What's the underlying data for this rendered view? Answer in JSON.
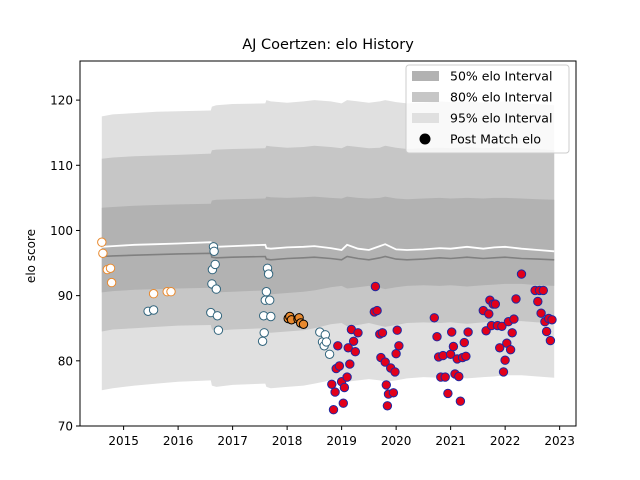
{
  "chart_data": {
    "type": "scatter",
    "title": "AJ Coertzen: elo History",
    "xlabel": "",
    "ylabel": "elo score",
    "xlim": [
      2014.2,
      2023.3
    ],
    "ylim": [
      70,
      126
    ],
    "xticks": [
      2015,
      2016,
      2017,
      2018,
      2019,
      2020,
      2021,
      2022,
      2023
    ],
    "yticks": [
      70,
      80,
      90,
      100,
      110,
      120
    ],
    "legend_position": "top-right",
    "legend": [
      {
        "label": "50% elo Interval",
        "kind": "band",
        "color": "#b2b2b2"
      },
      {
        "label": "80% elo Interval",
        "kind": "band",
        "color": "#c6c6c6"
      },
      {
        "label": "95% elo Interval",
        "kind": "band",
        "color": "#e0e0e0"
      },
      {
        "label": "Post Match elo",
        "kind": "marker",
        "color": "#000000"
      }
    ],
    "bands": {
      "x": [
        2014.6,
        2014.8,
        2015.2,
        2015.6,
        2016.0,
        2016.6,
        2016.62,
        2016.7,
        2017.0,
        2017.6,
        2017.62,
        2017.7,
        2018.0,
        2018.3,
        2018.5,
        2018.8,
        2019.0,
        2019.1,
        2019.3,
        2019.5,
        2019.7,
        2019.8,
        2020.0,
        2020.2,
        2020.5,
        2020.8,
        2021.0,
        2021.3,
        2021.6,
        2021.8,
        2022.0,
        2022.3,
        2022.6,
        2022.9
      ],
      "p95_low": [
        75.5,
        75.8,
        76.2,
        76.5,
        76.8,
        77.0,
        76.2,
        76.0,
        76.3,
        76.5,
        76.0,
        75.8,
        76.0,
        76.2,
        76.5,
        77.0,
        77.2,
        76.8,
        77.0,
        77.2,
        77.0,
        76.8,
        77.0,
        77.3,
        77.5,
        77.4,
        77.5,
        77.3,
        77.5,
        77.6,
        77.8,
        77.8,
        77.6,
        77.4
      ],
      "p95_high": [
        117.5,
        117.8,
        118.0,
        118.2,
        118.3,
        118.4,
        119.0,
        119.2,
        119.4,
        119.5,
        120.0,
        119.8,
        119.6,
        119.8,
        120.0,
        119.8,
        119.5,
        120.0,
        119.8,
        119.6,
        119.8,
        120.0,
        119.7,
        119.5,
        119.6,
        119.8,
        119.7,
        119.8,
        119.6,
        119.7,
        119.8,
        119.5,
        119.4,
        119.2
      ],
      "p80_low": [
        84.5,
        84.8,
        85.0,
        85.2,
        85.4,
        85.5,
        84.8,
        84.6,
        84.8,
        85.0,
        84.4,
        84.3,
        84.5,
        84.7,
        85.0,
        85.6,
        85.8,
        85.3,
        85.5,
        85.8,
        85.4,
        85.2,
        85.5,
        85.8,
        85.9,
        85.8,
        85.9,
        85.7,
        85.9,
        86.0,
        86.1,
        86.1,
        85.9,
        85.8
      ],
      "p80_high": [
        111.0,
        111.2,
        111.4,
        111.5,
        111.6,
        111.8,
        112.3,
        112.4,
        112.5,
        112.6,
        113.0,
        112.9,
        112.7,
        112.8,
        113.0,
        112.8,
        112.6,
        113.0,
        112.8,
        112.6,
        112.7,
        113.0,
        112.7,
        112.5,
        112.6,
        112.7,
        112.6,
        112.8,
        112.6,
        112.7,
        112.8,
        112.6,
        112.5,
        112.3
      ],
      "p50_low": [
        90.5,
        90.7,
        90.9,
        91.0,
        91.1,
        91.2,
        90.6,
        90.5,
        90.6,
        90.8,
        90.3,
        90.2,
        90.4,
        90.6,
        90.8,
        91.3,
        91.5,
        91.1,
        91.3,
        91.5,
        91.2,
        91.0,
        91.3,
        91.5,
        91.6,
        91.5,
        91.6,
        91.4,
        91.6,
        91.7,
        91.8,
        91.8,
        91.6,
        91.5
      ],
      "p50_high": [
        103.5,
        103.6,
        103.8,
        103.9,
        104.0,
        104.1,
        104.6,
        104.7,
        104.8,
        104.9,
        105.2,
        105.1,
        105.0,
        105.1,
        105.2,
        105.0,
        104.9,
        105.2,
        105.0,
        104.9,
        105.0,
        105.2,
        104.9,
        104.8,
        104.9,
        105.0,
        104.9,
        105.0,
        104.9,
        105.0,
        105.0,
        104.9,
        104.8,
        104.7
      ],
      "median": [
        96.0,
        96.1,
        96.2,
        96.3,
        96.4,
        96.5,
        95.9,
        95.8,
        95.9,
        96.0,
        95.6,
        95.5,
        95.7,
        95.8,
        95.9,
        95.7,
        95.5,
        96.0,
        95.7,
        95.5,
        95.8,
        96.0,
        95.6,
        95.5,
        95.6,
        95.8,
        95.7,
        95.9,
        95.7,
        95.8,
        95.9,
        95.7,
        95.6,
        95.5
      ],
      "mean": [
        97.5,
        97.6,
        97.8,
        97.9,
        98.0,
        98.2,
        97.6,
        97.5,
        97.6,
        97.8,
        97.3,
        97.2,
        97.4,
        97.5,
        97.6,
        97.3,
        97.0,
        97.8,
        97.2,
        97.0,
        97.6,
        97.9,
        97.1,
        97.0,
        97.1,
        97.3,
        97.2,
        97.5,
        97.2,
        97.4,
        97.5,
        97.2,
        97.0,
        96.8
      ]
    },
    "series": [
      {
        "marker": "open-circle",
        "color": "#e8892e",
        "fill": "#ffffff",
        "points": [
          [
            2014.6,
            98.2
          ],
          [
            2014.62,
            96.5
          ],
          [
            2014.7,
            94.0
          ],
          [
            2014.76,
            94.2
          ],
          [
            2014.78,
            92.0
          ],
          [
            2015.55,
            90.3
          ],
          [
            2015.8,
            90.6
          ],
          [
            2015.87,
            90.6
          ]
        ]
      },
      {
        "marker": "open-circle",
        "color": "#31647c",
        "fill": "#ffffff",
        "points": [
          [
            2015.45,
            87.6
          ],
          [
            2015.55,
            87.8
          ],
          [
            2016.6,
            87.4
          ],
          [
            2016.62,
            91.8
          ],
          [
            2016.63,
            94.0
          ],
          [
            2016.65,
            97.5
          ],
          [
            2016.66,
            96.8
          ],
          [
            2016.68,
            94.8
          ],
          [
            2016.7,
            91.0
          ],
          [
            2016.72,
            86.9
          ],
          [
            2016.74,
            84.7
          ],
          [
            2017.55,
            83.0
          ],
          [
            2017.57,
            86.9
          ],
          [
            2017.58,
            84.3
          ],
          [
            2017.6,
            89.3
          ],
          [
            2017.62,
            90.6
          ],
          [
            2017.64,
            94.2
          ],
          [
            2017.66,
            93.3
          ],
          [
            2017.68,
            89.3
          ],
          [
            2017.7,
            86.8
          ],
          [
            2018.6,
            84.4
          ],
          [
            2018.65,
            82.9
          ],
          [
            2018.68,
            82.3
          ],
          [
            2018.7,
            84.0
          ],
          [
            2018.72,
            82.9
          ],
          [
            2018.78,
            81.0
          ]
        ]
      },
      {
        "marker": "filled-circle",
        "color": "#000000",
        "fill": "#e8892e",
        "points": [
          [
            2018.02,
            86.5
          ],
          [
            2018.05,
            86.8
          ],
          [
            2018.08,
            86.3
          ],
          [
            2018.2,
            86.4
          ],
          [
            2018.22,
            86.6
          ],
          [
            2018.25,
            85.8
          ],
          [
            2018.3,
            85.6
          ]
        ]
      },
      {
        "marker": "filled-circle",
        "color": "#1c29a4",
        "fill": "#e2001a",
        "points": [
          [
            2018.82,
            76.4
          ],
          [
            2018.85,
            72.5
          ],
          [
            2018.88,
            75.2
          ],
          [
            2018.9,
            78.8
          ],
          [
            2018.93,
            82.3
          ],
          [
            2018.96,
            79.2
          ],
          [
            2019.0,
            76.8
          ],
          [
            2019.03,
            73.5
          ],
          [
            2019.05,
            75.9
          ],
          [
            2019.1,
            77.5
          ],
          [
            2019.12,
            82.0
          ],
          [
            2019.15,
            79.5
          ],
          [
            2019.18,
            84.8
          ],
          [
            2019.22,
            83.0
          ],
          [
            2019.25,
            81.4
          ],
          [
            2019.3,
            84.3
          ],
          [
            2019.6,
            87.5
          ],
          [
            2019.62,
            91.4
          ],
          [
            2019.65,
            87.7
          ],
          [
            2019.7,
            84.1
          ],
          [
            2019.72,
            80.5
          ],
          [
            2019.75,
            84.3
          ],
          [
            2019.8,
            79.8
          ],
          [
            2019.82,
            76.3
          ],
          [
            2019.84,
            73.1
          ],
          [
            2019.86,
            74.9
          ],
          [
            2019.9,
            78.9
          ],
          [
            2019.95,
            75.1
          ],
          [
            2019.98,
            78.3
          ],
          [
            2020.0,
            81.1
          ],
          [
            2020.02,
            84.7
          ],
          [
            2020.05,
            82.3
          ],
          [
            2020.7,
            86.6
          ],
          [
            2020.75,
            83.7
          ],
          [
            2020.78,
            80.6
          ],
          [
            2020.82,
            77.5
          ],
          [
            2020.86,
            80.8
          ],
          [
            2020.9,
            77.5
          ],
          [
            2020.95,
            75.0
          ],
          [
            2021.0,
            81.0
          ],
          [
            2021.02,
            84.4
          ],
          [
            2021.05,
            82.2
          ],
          [
            2021.08,
            78.0
          ],
          [
            2021.12,
            80.3
          ],
          [
            2021.15,
            77.6
          ],
          [
            2021.18,
            73.8
          ],
          [
            2021.22,
            80.5
          ],
          [
            2021.25,
            82.8
          ],
          [
            2021.28,
            80.7
          ],
          [
            2021.32,
            84.4
          ],
          [
            2021.6,
            87.7
          ],
          [
            2021.65,
            84.6
          ],
          [
            2021.7,
            87.2
          ],
          [
            2021.72,
            89.3
          ],
          [
            2021.75,
            85.4
          ],
          [
            2021.78,
            88.7
          ],
          [
            2021.82,
            88.7
          ],
          [
            2021.86,
            85.4
          ],
          [
            2021.9,
            82.0
          ],
          [
            2021.94,
            85.3
          ],
          [
            2021.97,
            78.3
          ],
          [
            2022.0,
            80.1
          ],
          [
            2022.03,
            82.7
          ],
          [
            2022.06,
            86.0
          ],
          [
            2022.1,
            81.7
          ],
          [
            2022.13,
            84.3
          ],
          [
            2022.16,
            86.4
          ],
          [
            2022.2,
            89.5
          ],
          [
            2022.3,
            93.3
          ],
          [
            2022.55,
            90.8
          ],
          [
            2022.6,
            89.1
          ],
          [
            2022.63,
            90.8
          ],
          [
            2022.66,
            87.3
          ],
          [
            2022.7,
            90.8
          ],
          [
            2022.73,
            86.0
          ],
          [
            2022.76,
            84.5
          ],
          [
            2022.8,
            86.5
          ],
          [
            2022.83,
            83.1
          ],
          [
            2022.86,
            86.3
          ]
        ]
      }
    ]
  }
}
